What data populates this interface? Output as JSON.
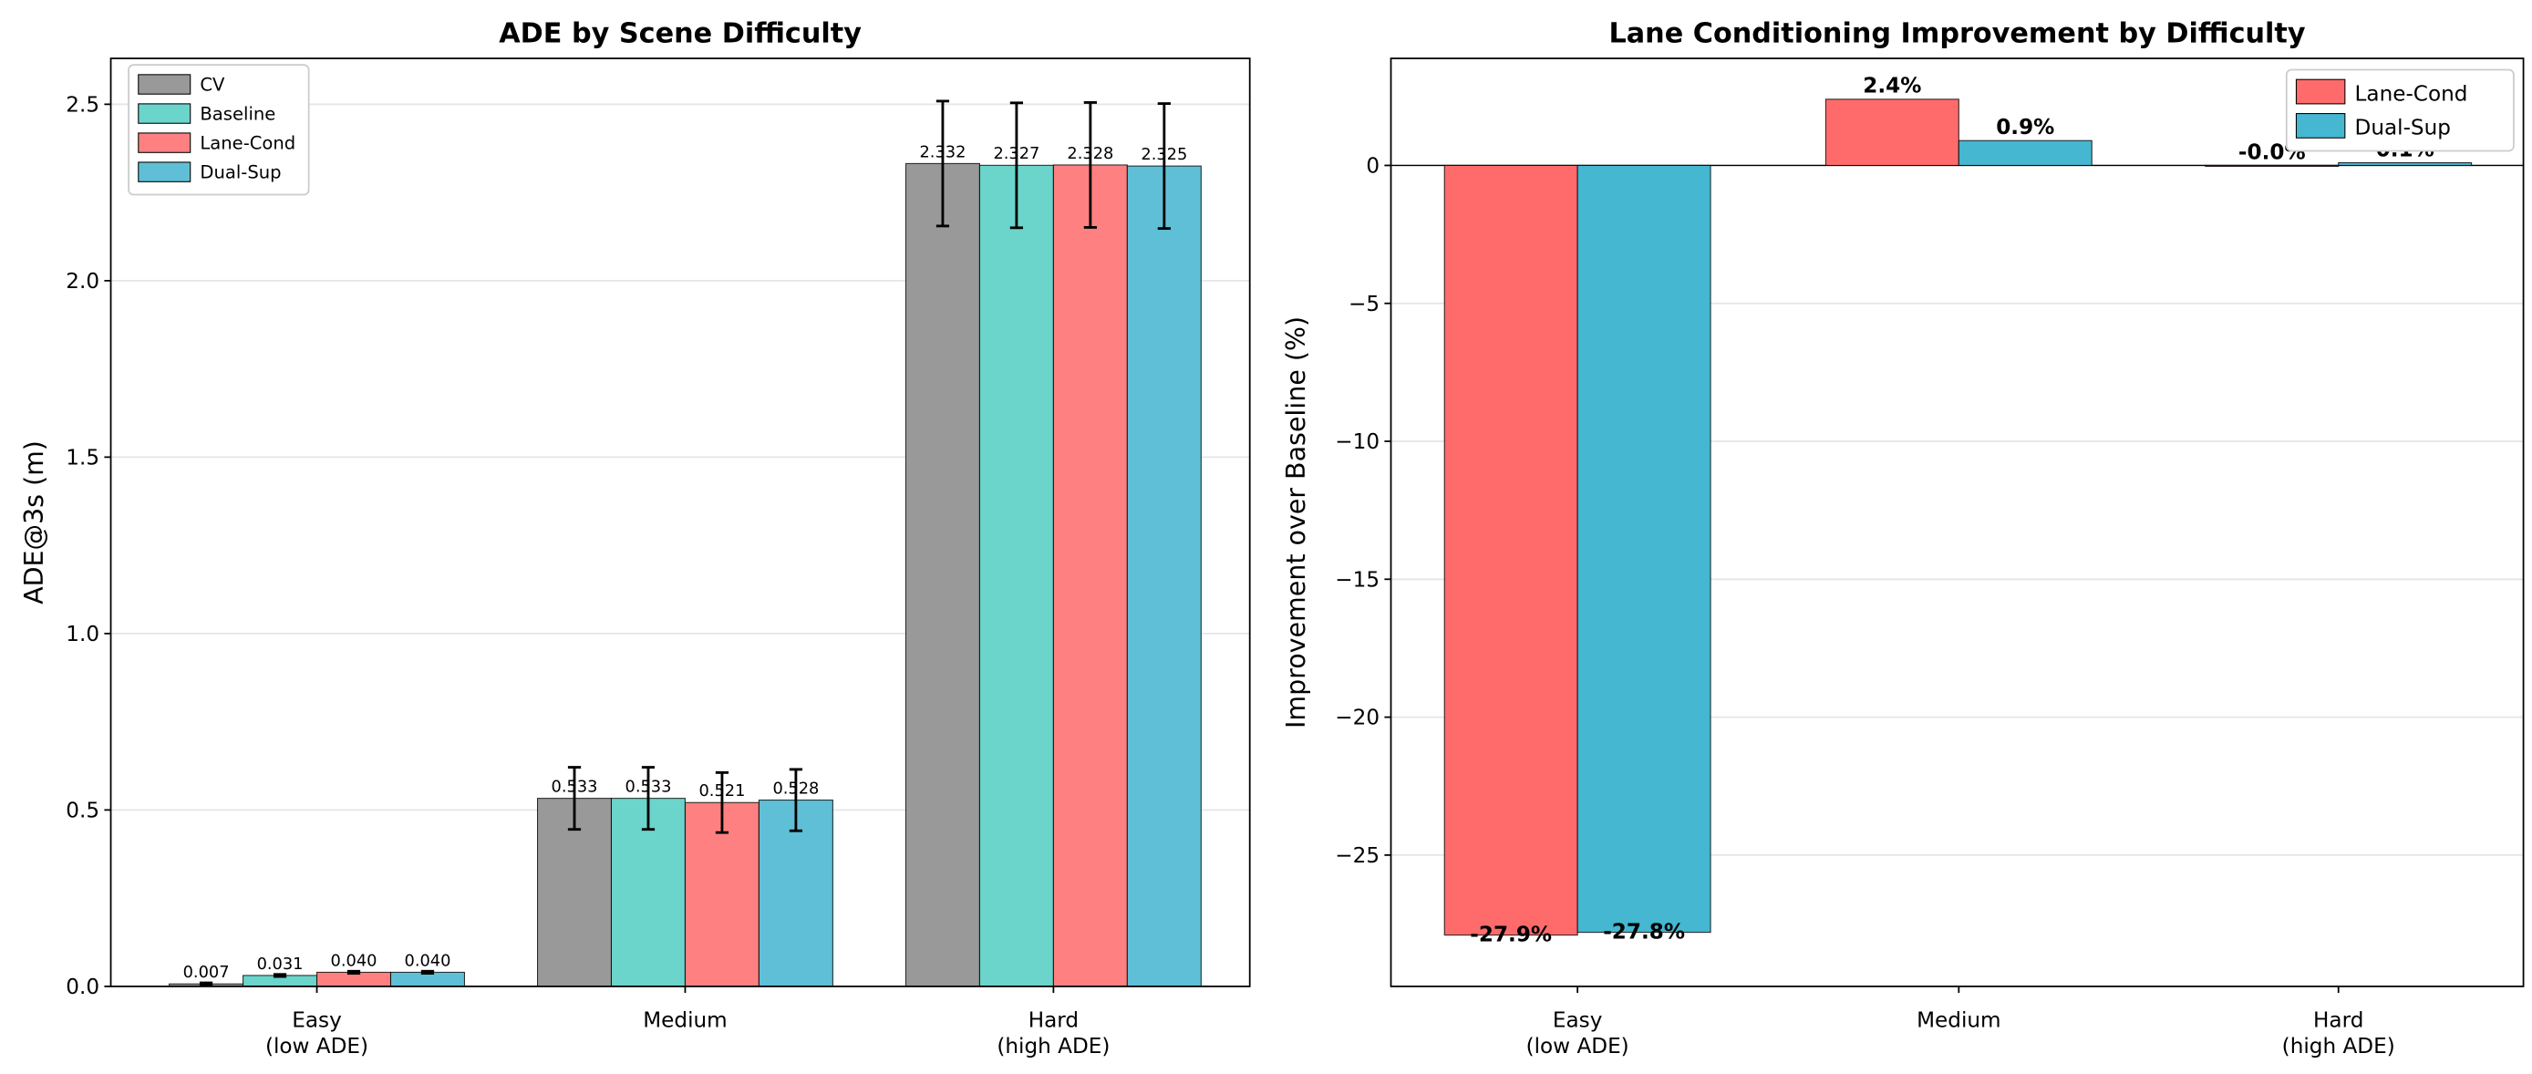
{
  "chart_data": [
    {
      "type": "bar",
      "title": "ADE by Scene Difficulty",
      "xlabel": "",
      "ylabel": "ADE@3s (m)",
      "categories": [
        "Easy\n(low ADE)",
        "Medium",
        "Hard\n(high ADE)"
      ],
      "ylim": [
        0,
        2.63
      ],
      "yticks": [
        0.0,
        0.5,
        1.0,
        1.5,
        2.0,
        2.5
      ],
      "ytick_labels": [
        "0.0",
        "0.5",
        "1.0",
        "1.5",
        "2.0",
        "2.5"
      ],
      "grid": "y",
      "legend": "top-left",
      "series": [
        {
          "name": "CV",
          "color": "#999999",
          "values": [
            0.007,
            0.533,
            2.332
          ],
          "labels": [
            "0.007",
            "0.533",
            "2.332"
          ],
          "errors": [
            0.003,
            0.088,
            0.177
          ]
        },
        {
          "name": "Baseline",
          "color": "#6BD4CB",
          "values": [
            0.031,
            0.533,
            2.327
          ],
          "labels": [
            "0.031",
            "0.533",
            "2.327"
          ],
          "errors": [
            0.003,
            0.088,
            0.177
          ]
        },
        {
          "name": "Lane-Cond",
          "color": "#FF8080",
          "values": [
            0.04,
            0.521,
            2.328
          ],
          "labels": [
            "0.040",
            "0.521",
            "2.328"
          ],
          "errors": [
            0.003,
            0.085,
            0.177
          ]
        },
        {
          "name": "Dual-Sup",
          "color": "#5FBFD6",
          "values": [
            0.04,
            0.528,
            2.325
          ],
          "labels": [
            "0.040",
            "0.528",
            "2.325"
          ],
          "errors": [
            0.003,
            0.087,
            0.177
          ]
        }
      ]
    },
    {
      "type": "bar",
      "title": "Lane Conditioning Improvement by Difficulty",
      "xlabel": "",
      "ylabel": "Improvement over Baseline (%)",
      "categories": [
        "Easy\n(low ADE)",
        "Medium",
        "Hard\n(high ADE)"
      ],
      "ylim": [
        -29.76,
        3.88
      ],
      "yticks": [
        -25,
        -20,
        -15,
        -10,
        -5,
        0
      ],
      "ytick_labels": [
        "−25",
        "−20",
        "−15",
        "−10",
        "−5",
        "0"
      ],
      "grid": "y",
      "legend": "top-right",
      "series": [
        {
          "name": "Lane-Cond",
          "color": "#FF6B6B",
          "values": [
            -27.9,
            2.4,
            -0.0
          ],
          "labels": [
            "-27.9%",
            "2.4%",
            "-0.0%"
          ]
        },
        {
          "name": "Dual-Sup",
          "color": "#45B7D1",
          "values": [
            -27.8,
            0.9,
            0.1
          ],
          "labels": [
            "-27.8%",
            "0.9%",
            "0.1%"
          ]
        }
      ]
    }
  ]
}
